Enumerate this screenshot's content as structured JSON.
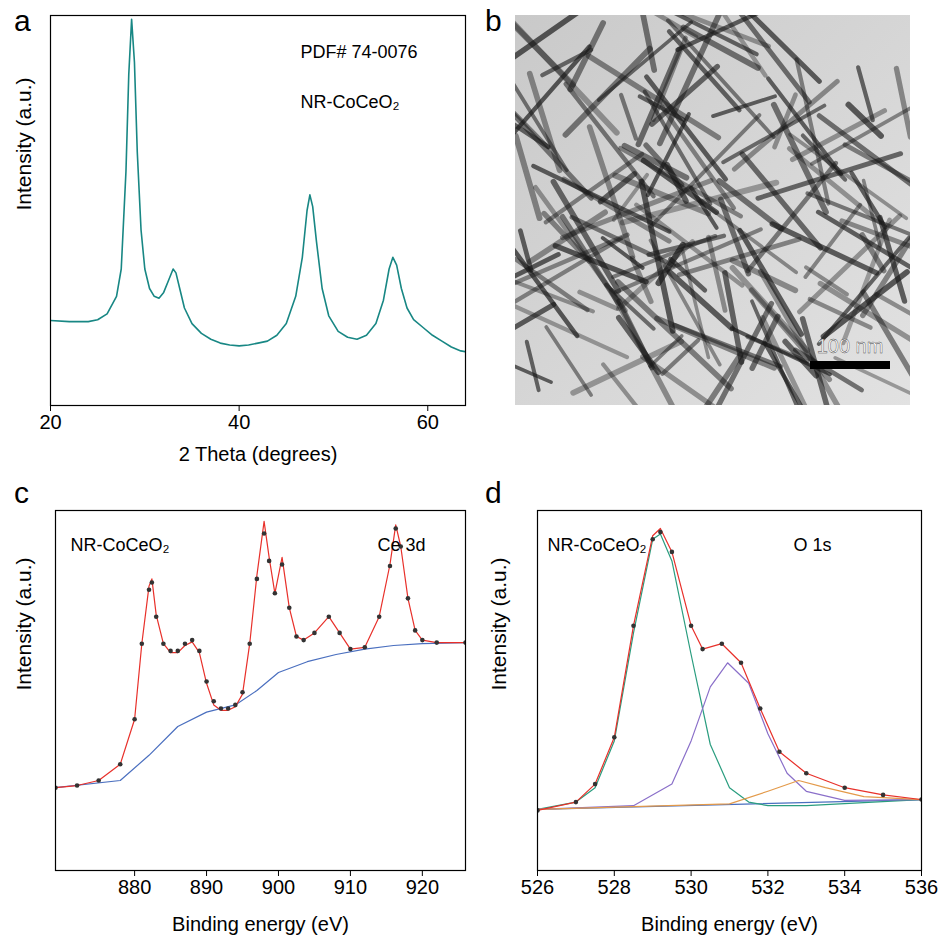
{
  "chart_data": [
    {
      "panel": "a",
      "type": "line",
      "x_label": "2 Theta (degrees)",
      "y_label": "Intensity (a.u.)",
      "annotations": [
        "PDF# 74-0076",
        "NR-CoCeO₂"
      ],
      "xlim": [
        20,
        64
      ],
      "xticks": [
        20,
        40,
        60
      ],
      "ylim": [
        0,
        100
      ],
      "tick_labels": "x",
      "color": "#188784",
      "x": [
        20,
        22,
        24,
        25,
        26,
        27,
        27.5,
        28,
        28.3,
        28.6,
        28.9,
        29.2,
        29.6,
        30,
        30.5,
        31,
        31.5,
        32,
        32.5,
        33,
        33.3,
        33.7,
        34.2,
        35,
        36,
        37,
        38,
        39,
        40,
        41,
        42,
        43,
        44,
        45,
        46,
        46.7,
        47.2,
        47.5,
        47.8,
        48.2,
        48.8,
        49.5,
        50.5,
        51.5,
        52.5,
        53.5,
        54.5,
        55.3,
        55.9,
        56.3,
        56.7,
        57.2,
        57.8,
        58.5,
        59.5,
        60.5,
        61.5,
        62.5,
        63.5,
        64
      ],
      "values": [
        21.8,
        21.5,
        21.5,
        22,
        23.5,
        28,
        35,
        60,
        85,
        99,
        88,
        65,
        45,
        35,
        30,
        28,
        27.5,
        29,
        32,
        35,
        34,
        30,
        25,
        21,
        18.5,
        17,
        16,
        15.5,
        15.3,
        15.5,
        16,
        16.5,
        18,
        21,
        28,
        38,
        50,
        54,
        51,
        42,
        30,
        23,
        19,
        17.5,
        17,
        18,
        21,
        27,
        35,
        38,
        36,
        30,
        25,
        22,
        20,
        18,
        16.5,
        15,
        14,
        13.8
      ]
    },
    {
      "panel": "b",
      "type": "image",
      "scale_bar": "100 nm"
    },
    {
      "panel": "c",
      "type": "line",
      "x_label": "Binding energy (eV)",
      "y_label": "Intensity (a.u.)",
      "annotations": [
        "NR-CoCeO₂",
        "Ce 3d"
      ],
      "xlim": [
        869,
        926
      ],
      "xticks": [
        880,
        890,
        900,
        910,
        920
      ],
      "ylim": [
        0,
        100
      ],
      "tick_labels": "x",
      "series": [
        {
          "color": "#4a6fbf",
          "line_style": "solid",
          "x": [
            869,
            878,
            882,
            886,
            890,
            894,
            897,
            900,
            904,
            908,
            912,
            916,
            920,
            926
          ],
          "values": [
            23,
            25,
            32,
            40,
            44,
            46,
            50,
            55,
            58,
            60,
            61.5,
            62.5,
            63,
            63.3
          ]
        },
        {
          "color": "#e8302a",
          "line_style": "solid",
          "x": [
            869,
            872,
            875,
            878,
            880,
            881,
            882,
            882.4,
            883,
            884,
            885,
            886,
            887,
            888,
            889,
            890,
            891,
            892,
            893,
            894,
            895,
            896,
            897,
            898,
            898.7,
            899.5,
            900.5,
            901.5,
            902.5,
            903.5,
            905,
            907,
            908.5,
            910,
            912,
            914,
            915.5,
            916.3,
            917,
            918,
            919,
            920,
            922,
            926
          ],
          "values": [
            23,
            23.6,
            25,
            29.5,
            42,
            63,
            79,
            81,
            71,
            63,
            60.5,
            60.5,
            62.5,
            63.5,
            60.5,
            52,
            46,
            44.5,
            44.5,
            45.5,
            49,
            63,
            82,
            97,
            87,
            77,
            87,
            73,
            65,
            64,
            66,
            70.5,
            66,
            61.5,
            62,
            70.5,
            85,
            96,
            90,
            75.6,
            66.7,
            64,
            63.3,
            63.3
          ]
        },
        {
          "color": "#333333",
          "marker": "circle",
          "x": [
            869,
            872,
            875,
            878,
            880,
            881,
            882,
            882.4,
            883,
            884,
            885,
            886,
            887,
            888,
            889,
            890,
            891,
            892,
            893,
            894,
            895,
            896,
            897,
            898,
            898.7,
            899.5,
            900.5,
            901.5,
            902.5,
            903.5,
            905,
            907,
            908.5,
            910,
            912,
            914,
            915.5,
            916.3,
            917,
            918,
            919,
            920,
            922,
            926
          ],
          "values": [
            23,
            23.6,
            25,
            29.5,
            42,
            63,
            78,
            80,
            70.5,
            63,
            61,
            61,
            63,
            64,
            61,
            52.5,
            47,
            45,
            45,
            46,
            49.5,
            63,
            81,
            93.6,
            86,
            77,
            85,
            73,
            65,
            64,
            66,
            70.5,
            66,
            61.5,
            62,
            70.5,
            84.6,
            95,
            90,
            75.6,
            66.7,
            64,
            63.3,
            63.3
          ]
        }
      ]
    },
    {
      "panel": "d",
      "type": "line",
      "x_label": "Binding energy (eV)",
      "y_label": "Intensity (a.u.)",
      "annotations": [
        "NR-CoCeO₂",
        "O 1s"
      ],
      "xlim": [
        526,
        536
      ],
      "xticks": [
        526,
        528,
        530,
        532,
        534,
        536
      ],
      "ylim": [
        0,
        100
      ],
      "tick_labels": "x",
      "series": [
        {
          "color": "#4a6fbf",
          "line_style": "solid",
          "x": [
            526,
            536
          ],
          "values": [
            17,
            19.7
          ]
        },
        {
          "color": "#2a9d7f",
          "line_style": "solid",
          "x": [
            526,
            527,
            527.5,
            528,
            528.5,
            529,
            529.2,
            529.5,
            530,
            530.5,
            531,
            531.5,
            532,
            533,
            536
          ],
          "values": [
            17,
            19,
            23,
            36,
            66,
            92,
            93.5,
            86,
            60,
            35,
            23,
            19,
            18,
            18,
            19.7
          ]
        },
        {
          "color": "#8a6fc9",
          "line_style": "solid",
          "x": [
            526,
            528.5,
            529.5,
            530,
            530.5,
            530.95,
            531.5,
            532,
            532.5,
            533,
            534,
            536
          ],
          "values": [
            17,
            18,
            24,
            36,
            51,
            57.7,
            52,
            38,
            27,
            22,
            19.5,
            19.7
          ]
        },
        {
          "color": "#e39a4a",
          "line_style": "solid",
          "x": [
            526,
            531,
            532,
            532.8,
            533.5,
            534.5,
            536
          ],
          "values": [
            17,
            18.5,
            22,
            25,
            23,
            20.5,
            19.7
          ]
        },
        {
          "color": "#e8302a",
          "line_style": "solid",
          "x": [
            526,
            527,
            527.5,
            528,
            528.5,
            529,
            529.2,
            529.5,
            530,
            530.3,
            530.8,
            531.3,
            531.8,
            532.3,
            533,
            534,
            535,
            536
          ],
          "values": [
            16.7,
            19,
            24,
            37,
            68,
            93,
            95,
            88.5,
            68,
            61.5,
            63,
            57.7,
            45,
            33,
            27,
            23,
            21,
            19.7
          ]
        },
        {
          "color": "#333333",
          "marker": "circle",
          "x": [
            526,
            527,
            527.5,
            528,
            528.5,
            529,
            529.2,
            529.5,
            530,
            530.3,
            530.8,
            531.3,
            531.8,
            532.3,
            533,
            534,
            535,
            536
          ],
          "values": [
            16.7,
            19,
            24,
            37,
            68,
            92,
            94,
            88.5,
            68,
            61.5,
            63,
            57.7,
            45,
            33,
            27,
            23,
            21,
            19.7
          ]
        }
      ]
    }
  ]
}
